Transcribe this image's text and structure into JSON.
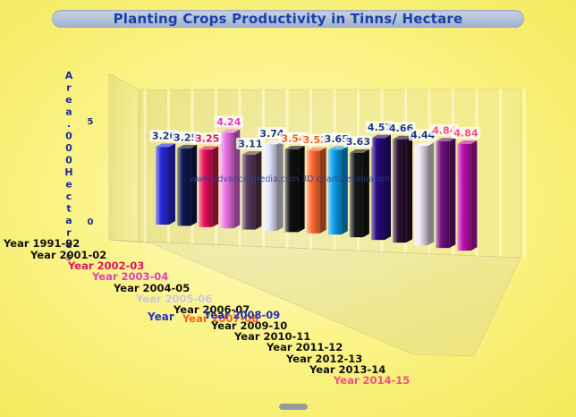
{
  "chart_data": {
    "type": "bar",
    "title": "Planting Crops  Productivity in Tinns/ Hectare",
    "xlabel": "Year",
    "ylabel": "Area .000 Hectares",
    "y_ticks": [
      "0",
      "5"
    ],
    "ylim": [
      0,
      7
    ],
    "watermark": "www.advance-media.com 3D charts evaluation",
    "categories": [
      "Year 1991-92",
      "Year 2001-02",
      "Year 2002-03",
      "Year 2003-04",
      "Year 2004-05",
      "Year 2005-06",
      "Year 2006-07",
      "Year 2007-08",
      "Year 2008-09",
      "Year 2009-10",
      "Year 2010-11",
      "Year 2011-12",
      "Year 2012-13",
      "Year 2013-14",
      "Year 2014-15"
    ],
    "category_colors": [
      "#111111",
      "#111111",
      "#e01060",
      "#e040c0",
      "#111111",
      "#c8c8e8",
      "#111111",
      "#f06020",
      "#2030c0",
      "#111111",
      "#111111",
      "#111111",
      "#111111",
      "#111111",
      "#f05080"
    ],
    "value_labels": [
      "3.26",
      "3.25",
      "3.25",
      "4.24",
      "3.11",
      "3.74",
      "3.54",
      "3.52",
      "3.65",
      "3.63",
      "4.57",
      "4.66",
      "4.44",
      "4.84",
      "4.84"
    ],
    "values": [
      3.26,
      3.25,
      3.25,
      4.24,
      3.11,
      3.74,
      3.54,
      3.52,
      3.65,
      3.63,
      4.57,
      4.66,
      4.44,
      4.84,
      4.84
    ],
    "bar_colors": [
      "#2a2ae0",
      "#101850",
      "#e8105a",
      "#f070e8",
      "#5a3a5a",
      "#e8e8ff",
      "#101010",
      "#ff6a30",
      "#0aa0f0",
      "#181818",
      "#2a0a80",
      "#2a1030",
      "#f0e8f8",
      "#701080",
      "#c010b0"
    ],
    "value_label_colors": [
      "#1a3a8a",
      "#1a3a8a",
      "#e01060",
      "#e040c0",
      "#1a3a8a",
      "#1a3a8a",
      "#f06020",
      "#f06020",
      "#1a3a8a",
      "#1a3a8a",
      "#1a3a8a",
      "#1a3a8a",
      "#1a3a8a",
      "#f05080",
      "#f05080"
    ]
  },
  "colors": {
    "background": "#f8f070",
    "title_text": "#1c3fa8",
    "title_pill": "#b8c6de"
  }
}
